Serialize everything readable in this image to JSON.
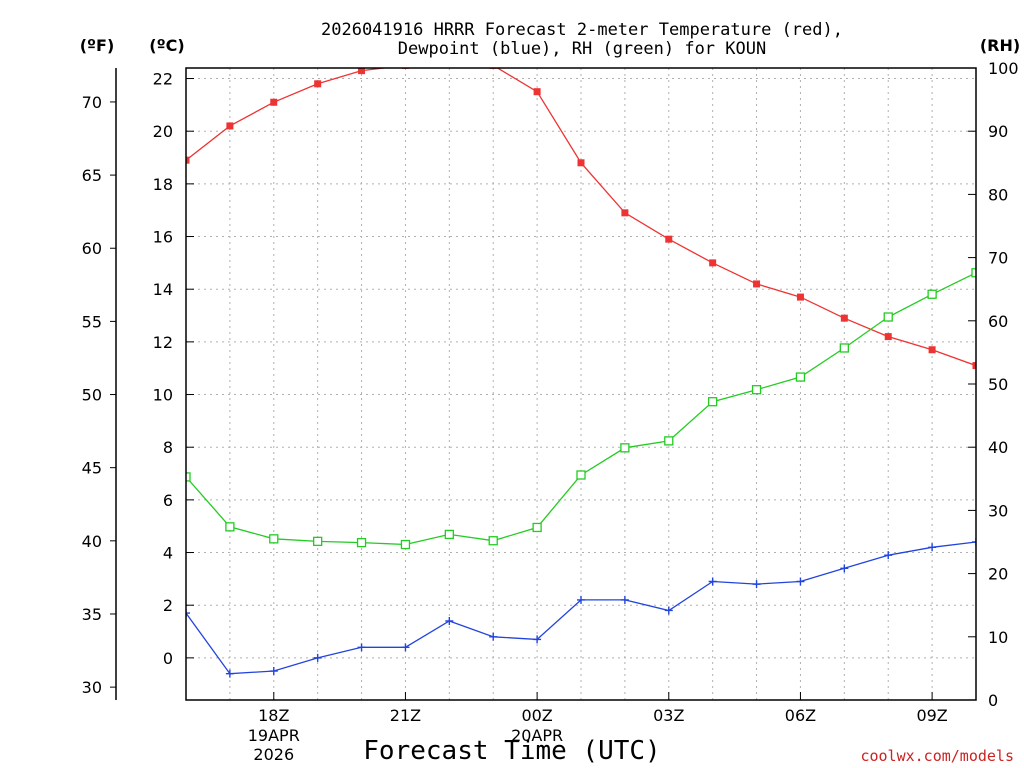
{
  "chart_data": {
    "type": "line",
    "title_line1": "2026041916 HRRR Forecast 2-meter Temperature (red),",
    "title_line2": "Dewpoint (blue), RH (green) for KOUN",
    "xlabel": "Forecast Time (UTC)",
    "credit": "coolwx.com/models",
    "unit_f": "(ºF)",
    "unit_c": "(ºC)",
    "unit_rh": "(RH)",
    "x_hours": [
      16,
      17,
      18,
      19,
      20,
      21,
      22,
      23,
      24,
      25,
      26,
      27,
      28,
      29,
      30,
      31,
      32,
      33,
      34
    ],
    "xlim": [
      16,
      34
    ],
    "x_ticks": [
      {
        "hour": 18,
        "label": "18Z",
        "sub1": "19APR",
        "sub2": "2026"
      },
      {
        "hour": 21,
        "label": "21Z",
        "sub1": "",
        "sub2": ""
      },
      {
        "hour": 24,
        "label": "00Z",
        "sub1": "20APR",
        "sub2": ""
      },
      {
        "hour": 27,
        "label": "03Z",
        "sub1": "",
        "sub2": ""
      },
      {
        "hour": 30,
        "label": "06Z",
        "sub1": "",
        "sub2": ""
      },
      {
        "hour": 33,
        "label": "09Z",
        "sub1": "",
        "sub2": ""
      }
    ],
    "ylim_c": [
      -1.6,
      22.4
    ],
    "ylim_rh": [
      0,
      100
    ],
    "left_c_ticks": [
      "0",
      "2",
      "4",
      "6",
      "8",
      "10",
      "12",
      "14",
      "16",
      "18",
      "20",
      "22"
    ],
    "left_f_ticks": [
      "30",
      "35",
      "40",
      "45",
      "50",
      "55",
      "60",
      "65",
      "70"
    ],
    "right_rh_ticks": [
      "0",
      "10",
      "20",
      "30",
      "40",
      "50",
      "60",
      "70",
      "80",
      "90",
      "100"
    ],
    "series": [
      {
        "name": "Temperature",
        "unit": "°C",
        "color": "#ee3333",
        "values": [
          18.9,
          20.2,
          21.1,
          21.8,
          22.3,
          22.5,
          22.6,
          22.5,
          21.5,
          18.8,
          16.9,
          15.9,
          15.0,
          14.2,
          13.7,
          12.9,
          12.2,
          11.7,
          11.1
        ]
      },
      {
        "name": "Dewpoint",
        "unit": "°C",
        "color": "#2244dd",
        "values": [
          1.7,
          -0.6,
          -0.5,
          0.0,
          0.4,
          0.4,
          1.4,
          0.8,
          0.7,
          2.2,
          2.2,
          1.8,
          2.9,
          2.8,
          2.9,
          3.4,
          3.9,
          4.2,
          4.4
        ]
      },
      {
        "name": "RH",
        "unit": "%",
        "color": "#22cc22",
        "values": [
          35.3,
          27.4,
          25.5,
          25.1,
          24.9,
          24.6,
          26.2,
          25.2,
          27.3,
          35.6,
          39.9,
          41.0,
          47.2,
          49.1,
          51.1,
          55.7,
          60.6,
          64.2,
          67.6
        ]
      }
    ]
  }
}
